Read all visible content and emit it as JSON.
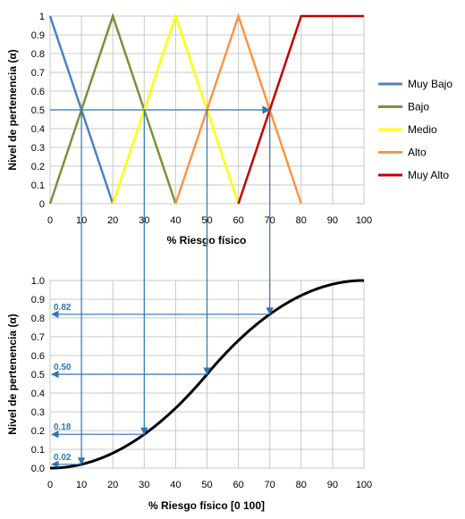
{
  "chart_data": [
    {
      "type": "line",
      "xlabel": "% Riesgo físico",
      "ylabel": "Nivel de pertenencia  (α)",
      "xlim": [
        0,
        100
      ],
      "ylim": [
        0,
        1
      ],
      "xticks": [
        "0",
        "10",
        "20",
        "30",
        "40",
        "50",
        "60",
        "70",
        "80",
        "90",
        "100"
      ],
      "yticks": [
        "0",
        "0.1",
        "0.2",
        "0.3",
        "0.4",
        "0.5",
        "0.6",
        "0.7",
        "0.8",
        "0.9",
        "1"
      ],
      "grid": true,
      "legend_position": "right",
      "series": [
        {
          "name": "Muy Bajo",
          "color": "#4F81BD",
          "x": [
            0,
            20
          ],
          "y": [
            1,
            0
          ]
        },
        {
          "name": "Bajo",
          "color": "#77933C",
          "x": [
            0,
            20,
            40
          ],
          "y": [
            0,
            1,
            0
          ]
        },
        {
          "name": "Medio",
          "color": "#FFFF00",
          "x": [
            20,
            40,
            60
          ],
          "y": [
            0,
            1,
            0
          ]
        },
        {
          "name": "Alto",
          "color": "#F79646",
          "x": [
            40,
            60,
            80
          ],
          "y": [
            0,
            1,
            0
          ]
        },
        {
          "name": "Muy Alto",
          "color": "#C00000",
          "x": [
            60,
            80,
            100
          ],
          "y": [
            0,
            1,
            1
          ]
        }
      ],
      "arrow": {
        "color": "#2E75B6",
        "y": 0.5,
        "from_x": 0,
        "to_x": 70
      }
    },
    {
      "type": "line",
      "xlabel": "% Riesgo físico [0 100]",
      "ylabel": "Nivel de pertenencia  (α)",
      "xlim": [
        0,
        100
      ],
      "ylim": [
        0,
        1
      ],
      "xticks": [
        "0",
        "10",
        "20",
        "30",
        "40",
        "50",
        "60",
        "70",
        "80",
        "90",
        "100"
      ],
      "yticks": [
        "0.0",
        "0.1",
        "0.2",
        "0.3",
        "0.4",
        "0.5",
        "0.6",
        "0.7",
        "0.8",
        "0.9",
        "1.0"
      ],
      "grid": true,
      "curve": {
        "type": "s-shaped",
        "color": "#000000",
        "a": 0,
        "b": 100
      },
      "annotations": [
        {
          "x": 10,
          "y": 0.02,
          "label": "0.02"
        },
        {
          "x": 30,
          "y": 0.18,
          "label": "0.18"
        },
        {
          "x": 50,
          "y": 0.5,
          "label": "0.50"
        },
        {
          "x": 70,
          "y": 0.82,
          "label": "0.82"
        }
      ],
      "annotation_color": "#2E75B6"
    }
  ]
}
